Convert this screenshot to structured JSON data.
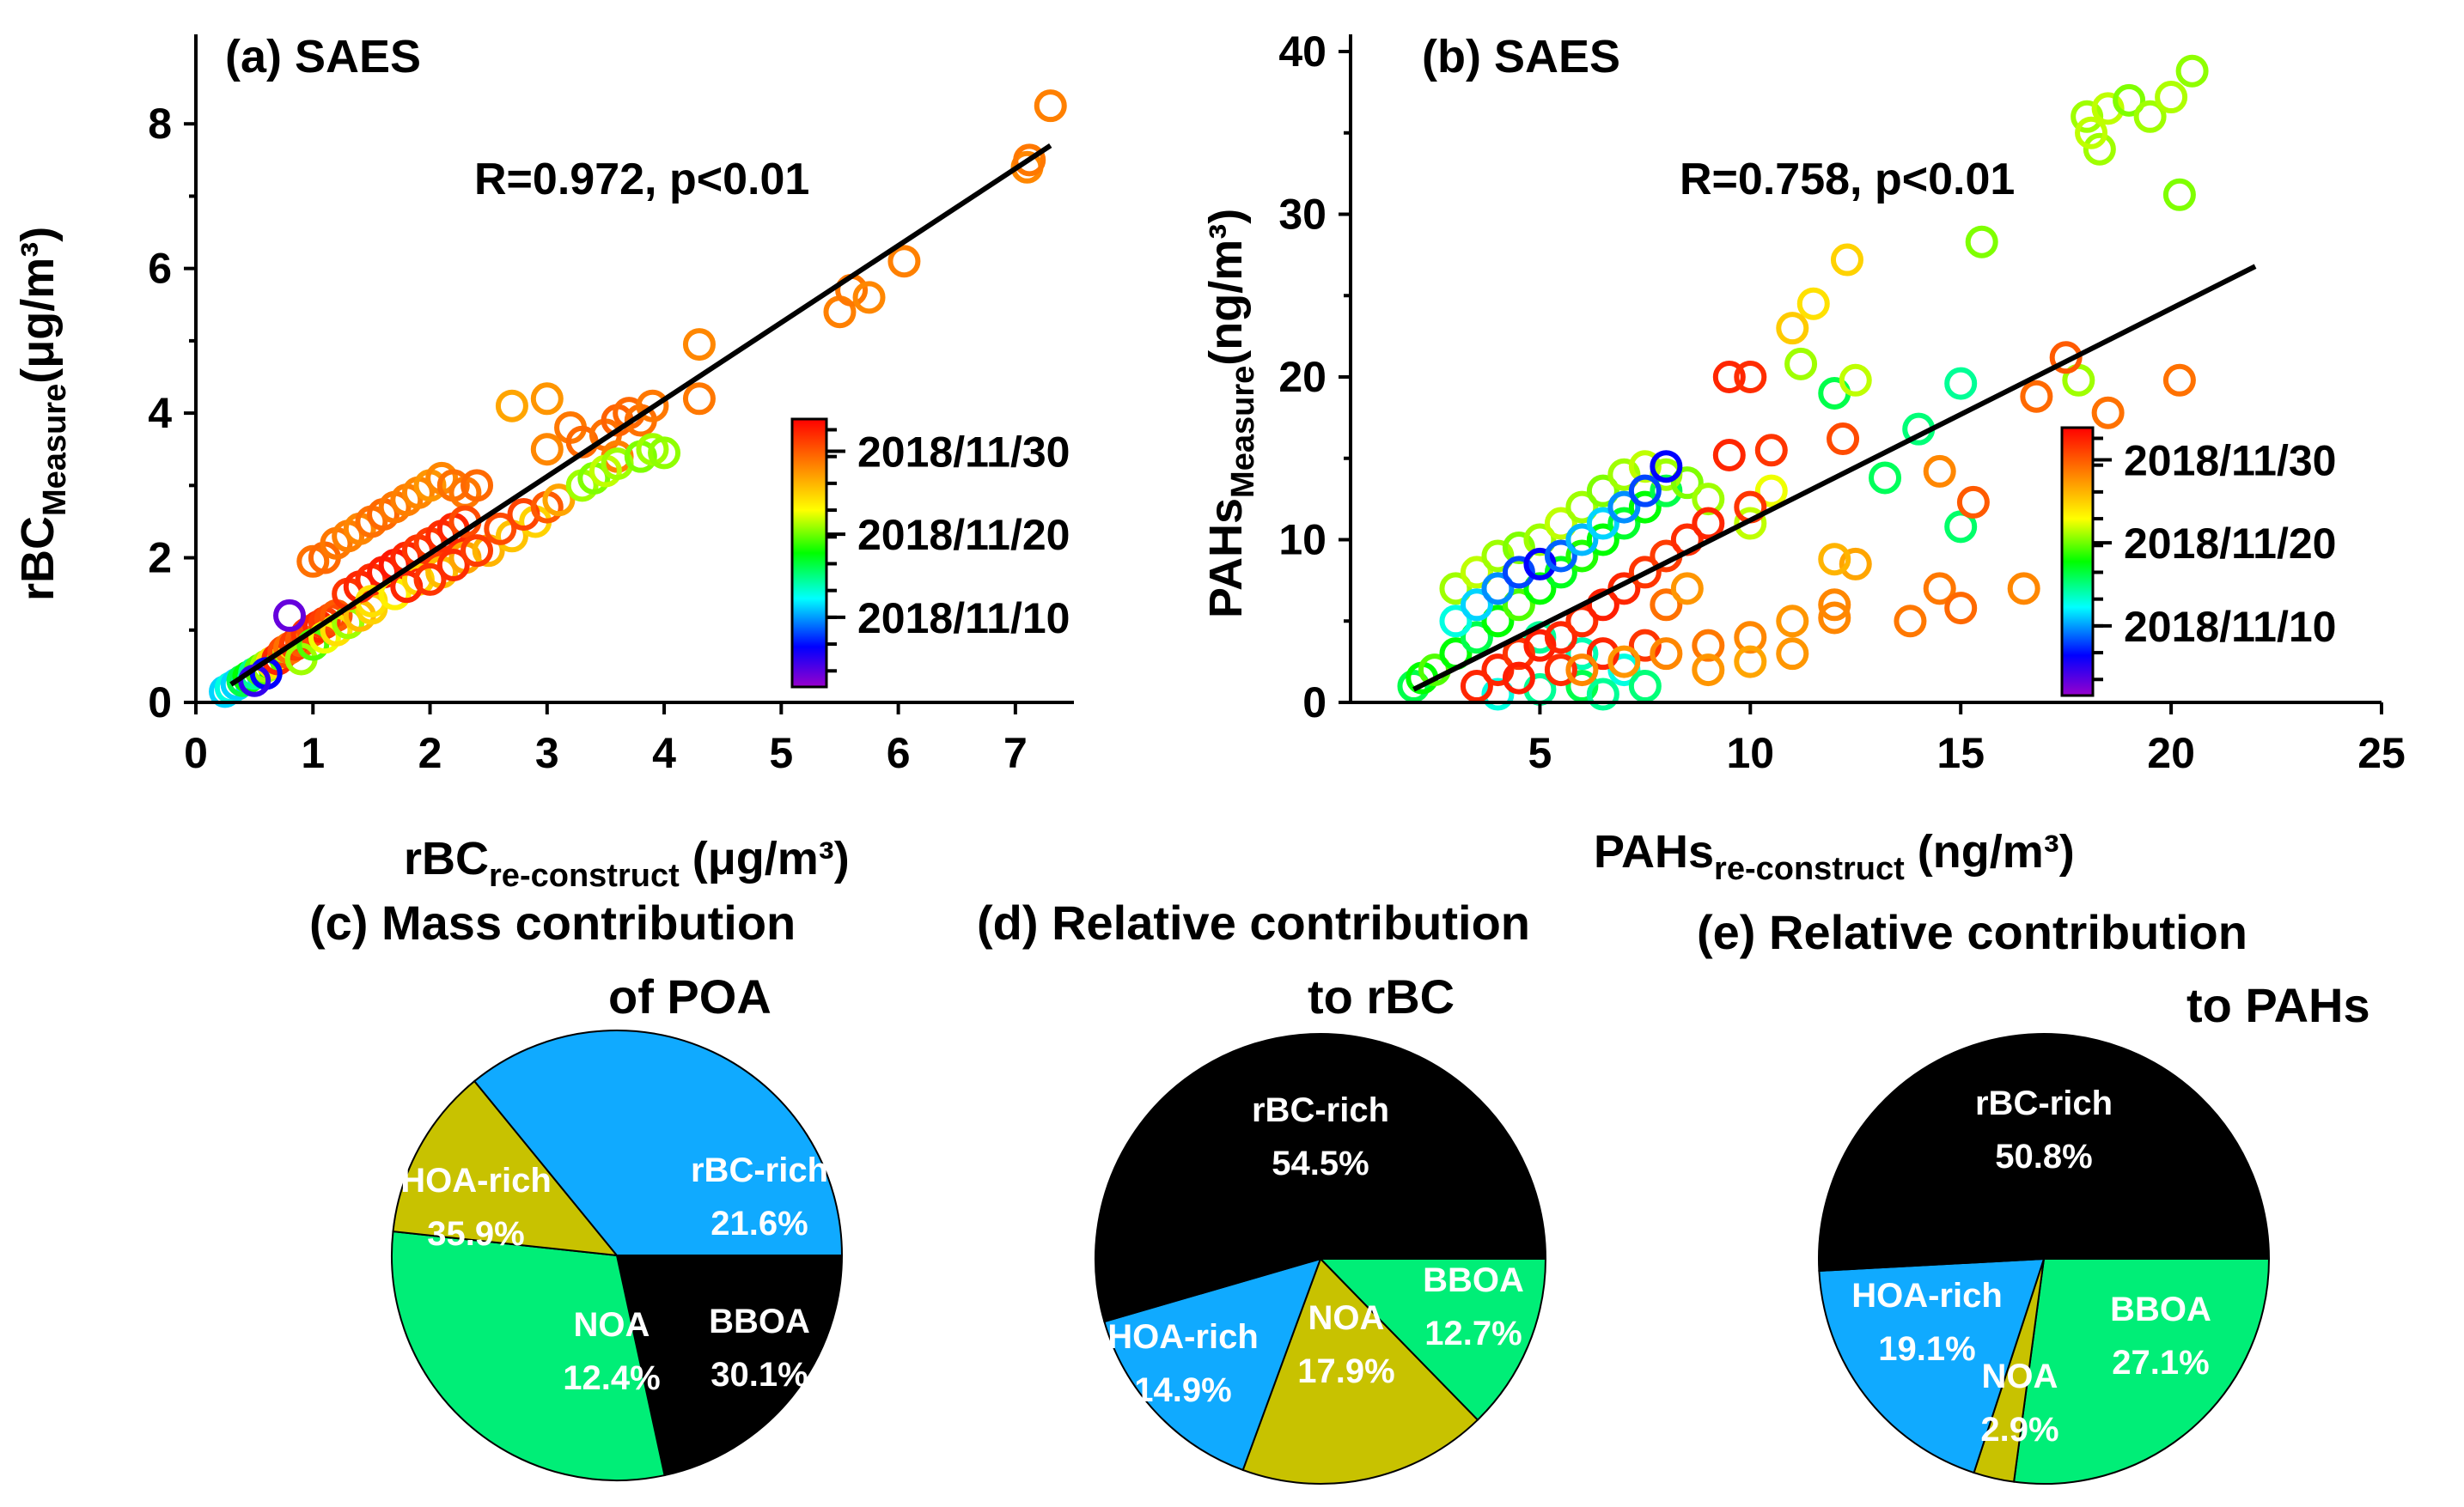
{
  "chart_data": [
    {
      "id": "a",
      "type": "scatter",
      "title": "(a) SAES",
      "xlabel": "rBC",
      "xlabel_sub": "re-construct",
      "xlabel_unit": " (μg/m³)",
      "ylabel": "rBC",
      "ylabel_sub": "Measure",
      "ylabel_unit": "(μg/m³)",
      "xlim": [
        0,
        7.5
      ],
      "ylim": [
        0,
        9
      ],
      "xticks": [
        0,
        1,
        2,
        3,
        4,
        5,
        6,
        7
      ],
      "yticks": [
        0,
        2,
        4,
        6,
        8
      ],
      "annotation": "R=0.972, p<0.01",
      "fit_line": {
        "x": [
          0.3,
          7.3
        ],
        "y": [
          0.25,
          7.7
        ]
      },
      "colorbar": {
        "min": 0,
        "max": 1,
        "labels": [
          "2018/11/30",
          "2018/11/20",
          "2018/11/10"
        ],
        "label_positions": [
          0.88,
          0.57,
          0.26
        ]
      },
      "points": [
        [
          0.25,
          0.15,
          0.3
        ],
        [
          0.3,
          0.2,
          0.35
        ],
        [
          0.35,
          0.25,
          0.3
        ],
        [
          0.4,
          0.3,
          0.45
        ],
        [
          0.45,
          0.35,
          0.5
        ],
        [
          0.5,
          0.4,
          0.4
        ],
        [
          0.55,
          0.45,
          0.55
        ],
        [
          0.6,
          0.5,
          0.6
        ],
        [
          0.65,
          0.55,
          0.7
        ],
        [
          0.7,
          0.6,
          0.95
        ],
        [
          0.75,
          0.7,
          0.9
        ],
        [
          0.8,
          0.75,
          0.85
        ],
        [
          0.85,
          0.8,
          0.92
        ],
        [
          0.9,
          0.85,
          0.88
        ],
        [
          0.95,
          0.95,
          0.93
        ],
        [
          1.0,
          1.0,
          0.9
        ],
        [
          1.05,
          1.05,
          0.95
        ],
        [
          1.1,
          1.1,
          0.92
        ],
        [
          1.15,
          1.15,
          0.9
        ],
        [
          1.2,
          1.2,
          0.88
        ],
        [
          0.8,
          1.2,
          0.05
        ],
        [
          0.6,
          0.4,
          0.15
        ],
        [
          0.5,
          0.3,
          0.1
        ],
        [
          0.9,
          0.6,
          0.6
        ],
        [
          1.0,
          0.8,
          0.55
        ],
        [
          1.1,
          0.9,
          0.65
        ],
        [
          1.2,
          1.0,
          0.7
        ],
        [
          1.3,
          1.1,
          0.6
        ],
        [
          1.4,
          1.2,
          0.75
        ],
        [
          1.5,
          1.3,
          0.72
        ],
        [
          1.0,
          1.95,
          0.85
        ],
        [
          1.1,
          2.0,
          0.86
        ],
        [
          1.2,
          2.2,
          0.84
        ],
        [
          1.3,
          2.3,
          0.83
        ],
        [
          1.4,
          2.4,
          0.82
        ],
        [
          1.5,
          2.5,
          0.85
        ],
        [
          1.6,
          2.6,
          0.86
        ],
        [
          1.7,
          2.7,
          0.84
        ],
        [
          1.8,
          2.8,
          0.83
        ],
        [
          1.9,
          2.9,
          0.82
        ],
        [
          2.0,
          3.0,
          0.8
        ],
        [
          2.1,
          3.1,
          0.82
        ],
        [
          2.2,
          3.0,
          0.85
        ],
        [
          2.3,
          2.9,
          0.84
        ],
        [
          2.4,
          3.0,
          0.86
        ],
        [
          1.3,
          1.5,
          0.93
        ],
        [
          1.4,
          1.6,
          0.95
        ],
        [
          1.5,
          1.7,
          0.94
        ],
        [
          1.6,
          1.8,
          0.96
        ],
        [
          1.7,
          1.9,
          0.97
        ],
        [
          1.8,
          2.0,
          0.95
        ],
        [
          1.9,
          2.1,
          0.93
        ],
        [
          2.0,
          2.2,
          0.92
        ],
        [
          2.1,
          2.3,
          0.94
        ],
        [
          2.2,
          2.4,
          0.95
        ],
        [
          2.3,
          2.5,
          0.9
        ],
        [
          1.5,
          1.4,
          0.7
        ],
        [
          1.7,
          1.5,
          0.68
        ],
        [
          1.9,
          1.7,
          0.72
        ],
        [
          2.1,
          1.8,
          0.75
        ],
        [
          2.3,
          2.0,
          0.78
        ],
        [
          2.5,
          2.1,
          0.76
        ],
        [
          2.7,
          2.3,
          0.74
        ],
        [
          2.9,
          2.5,
          0.72
        ],
        [
          1.8,
          1.6,
          0.95
        ],
        [
          2.0,
          1.7,
          0.93
        ],
        [
          2.2,
          1.9,
          0.94
        ],
        [
          2.4,
          2.1,
          0.92
        ],
        [
          2.6,
          2.4,
          0.9
        ],
        [
          2.8,
          2.6,
          0.91
        ],
        [
          3.0,
          2.7,
          0.88
        ],
        [
          2.7,
          4.1,
          0.78
        ],
        [
          3.0,
          4.2,
          0.8
        ],
        [
          3.0,
          3.5,
          0.82
        ],
        [
          3.2,
          3.8,
          0.84
        ],
        [
          3.3,
          3.6,
          0.86
        ],
        [
          3.5,
          3.7,
          0.85
        ],
        [
          3.6,
          3.9,
          0.87
        ],
        [
          3.7,
          4.0,
          0.86
        ],
        [
          3.8,
          3.9,
          0.85
        ],
        [
          3.9,
          4.1,
          0.84
        ],
        [
          3.6,
          3.4,
          0.83
        ],
        [
          3.1,
          2.8,
          0.78
        ],
        [
          3.3,
          3.0,
          0.6
        ],
        [
          3.4,
          3.1,
          0.58
        ],
        [
          3.5,
          3.2,
          0.62
        ],
        [
          3.6,
          3.3,
          0.6
        ],
        [
          3.8,
          3.4,
          0.58
        ],
        [
          3.9,
          3.5,
          0.6
        ],
        [
          4.0,
          3.45,
          0.59
        ],
        [
          4.3,
          4.95,
          0.82
        ],
        [
          4.3,
          4.2,
          0.84
        ],
        [
          5.5,
          5.4,
          0.83
        ],
        [
          5.6,
          5.7,
          0.84
        ],
        [
          5.75,
          5.6,
          0.82
        ],
        [
          6.05,
          6.1,
          0.83
        ],
        [
          7.1,
          7.4,
          0.82
        ],
        [
          7.12,
          7.5,
          0.84
        ],
        [
          7.3,
          8.25,
          0.83
        ]
      ]
    },
    {
      "id": "b",
      "type": "scatter",
      "title": "(b) SAES",
      "xlabel": "PAHs",
      "xlabel_sub": "re-construct",
      "xlabel_unit": " (ng/m³)",
      "ylabel": "PAHs",
      "ylabel_sub": "Measure",
      "ylabel_unit": "(ng/m³)",
      "xlim": [
        0.5,
        25
      ],
      "ylim": [
        0,
        40
      ],
      "xticks": [
        5,
        10,
        15,
        20,
        25
      ],
      "yticks": [
        0,
        10,
        20,
        30,
        40
      ],
      "annotation": "R=0.758, p<0.01",
      "fit_line": {
        "x": [
          2.0,
          22.0
        ],
        "y": [
          0.8,
          26.8
        ]
      },
      "colorbar": {
        "min": 0,
        "max": 1,
        "labels": [
          "2018/11/30",
          "2018/11/20",
          "2018/11/10"
        ],
        "label_positions": [
          0.88,
          0.57,
          0.26
        ]
      },
      "points": [
        [
          18,
          36,
          0.6
        ],
        [
          18.5,
          36.5,
          0.62
        ],
        [
          19,
          37,
          0.58
        ],
        [
          19.5,
          36,
          0.6
        ],
        [
          20,
          37.2,
          0.61
        ],
        [
          20.5,
          38.8,
          0.59
        ],
        [
          20.2,
          31.2,
          0.58
        ],
        [
          18.3,
          34,
          0.6
        ],
        [
          18.1,
          35,
          0.62
        ],
        [
          15.5,
          28.3,
          0.58
        ],
        [
          17.8,
          19.8,
          0.6
        ],
        [
          12.3,
          27.2,
          0.72
        ],
        [
          11.5,
          24.5,
          0.7
        ],
        [
          11,
          23,
          0.73
        ],
        [
          11.2,
          20.8,
          0.6
        ],
        [
          12.0,
          19,
          0.45
        ],
        [
          14.0,
          16.8,
          0.42
        ],
        [
          15.0,
          19.6,
          0.4
        ],
        [
          13.2,
          13.8,
          0.44
        ],
        [
          15,
          10.8,
          0.43
        ],
        [
          12.5,
          19.8,
          0.62
        ],
        [
          9.5,
          20,
          0.95
        ],
        [
          10,
          20,
          0.94
        ],
        [
          9.5,
          15.2,
          0.95
        ],
        [
          10.5,
          15.5,
          0.93
        ],
        [
          12.2,
          16.2,
          0.9
        ],
        [
          17.5,
          21.2,
          0.88
        ],
        [
          16.8,
          18.8,
          0.86
        ],
        [
          18.5,
          17.8,
          0.85
        ],
        [
          20.2,
          19.8,
          0.85
        ],
        [
          15.3,
          12.3,
          0.88
        ],
        [
          14.5,
          14.2,
          0.82
        ],
        [
          16.5,
          7,
          0.82
        ],
        [
          14.5,
          7,
          0.84
        ],
        [
          15,
          5.8,
          0.86
        ],
        [
          13.8,
          5,
          0.84
        ],
        [
          2,
          1,
          0.45
        ],
        [
          2.2,
          1.5,
          0.5
        ],
        [
          2.5,
          2,
          0.55
        ],
        [
          3,
          3,
          0.5
        ],
        [
          3.5,
          4,
          0.45
        ],
        [
          4,
          5,
          0.5
        ],
        [
          4.5,
          6,
          0.55
        ],
        [
          5,
          7,
          0.5
        ],
        [
          5.5,
          8,
          0.48
        ],
        [
          6,
          9,
          0.52
        ],
        [
          6.5,
          10,
          0.5
        ],
        [
          7,
          11,
          0.47
        ],
        [
          7.5,
          12,
          0.5
        ],
        [
          8,
          13,
          0.45
        ],
        [
          3,
          7,
          0.6
        ],
        [
          3.5,
          8,
          0.62
        ],
        [
          4,
          9,
          0.6
        ],
        [
          4.5,
          9.5,
          0.58
        ],
        [
          5,
          10,
          0.6
        ],
        [
          5.5,
          11,
          0.62
        ],
        [
          6,
          12,
          0.6
        ],
        [
          6.5,
          13,
          0.58
        ],
        [
          7,
          14,
          0.6
        ],
        [
          7.5,
          14.5,
          0.62
        ],
        [
          8,
          14,
          0.6
        ],
        [
          8.5,
          13.5,
          0.58
        ],
        [
          9,
          12.5,
          0.6
        ],
        [
          10,
          11,
          0.62
        ],
        [
          10.5,
          13,
          0.65
        ],
        [
          3,
          5,
          0.35
        ],
        [
          3.5,
          6,
          0.3
        ],
        [
          4,
          7,
          0.25
        ],
        [
          4.5,
          8,
          0.2
        ],
        [
          5,
          8.5,
          0.15
        ],
        [
          5.5,
          9,
          0.22
        ],
        [
          6,
          10,
          0.28
        ],
        [
          6.5,
          11,
          0.3
        ],
        [
          7,
          12,
          0.25
        ],
        [
          7.5,
          13,
          0.2
        ],
        [
          8,
          14.5,
          0.15
        ],
        [
          5,
          4,
          0.4
        ],
        [
          6,
          3,
          0.38
        ],
        [
          7,
          2,
          0.35
        ],
        [
          6,
          1,
          0.45
        ],
        [
          5,
          0.8,
          0.4
        ],
        [
          7.5,
          1,
          0.42
        ],
        [
          4,
          0.5,
          0.35
        ],
        [
          6.5,
          0.5,
          0.4
        ],
        [
          4,
          2,
          0.95
        ],
        [
          4.5,
          3,
          0.93
        ],
        [
          5,
          3.5,
          0.96
        ],
        [
          5.5,
          4,
          0.95
        ],
        [
          6,
          5,
          0.94
        ],
        [
          6.5,
          6,
          0.96
        ],
        [
          7,
          7,
          0.95
        ],
        [
          7.5,
          8,
          0.93
        ],
        [
          8,
          9,
          0.92
        ],
        [
          8.5,
          10,
          0.94
        ],
        [
          9,
          11,
          0.95
        ],
        [
          10,
          12,
          0.93
        ],
        [
          3.5,
          1,
          0.95
        ],
        [
          4.5,
          1.5,
          0.96
        ],
        [
          5.5,
          2,
          0.94
        ],
        [
          6.5,
          3,
          0.95
        ],
        [
          7.5,
          3.5,
          0.93
        ],
        [
          6,
          2,
          0.82
        ],
        [
          7,
          2.5,
          0.8
        ],
        [
          8,
          3,
          0.82
        ],
        [
          9,
          3.5,
          0.84
        ],
        [
          10,
          4,
          0.82
        ],
        [
          11,
          5,
          0.8
        ],
        [
          12,
          6,
          0.82
        ],
        [
          9,
          2,
          0.8
        ],
        [
          10,
          2.5,
          0.78
        ],
        [
          11,
          3,
          0.8
        ],
        [
          12,
          5.2,
          0.82
        ],
        [
          12.5,
          8.5,
          0.78
        ],
        [
          12,
          8.8,
          0.76
        ],
        [
          8,
          6,
          0.85
        ],
        [
          8.5,
          7,
          0.8
        ]
      ]
    },
    {
      "id": "c",
      "type": "pie",
      "title_line1": "(c) Mass contribution",
      "title_line2": "of POA",
      "slices": [
        {
          "label": "rBC-rich",
          "value": 21.6,
          "pct": "21.6%",
          "color": "#000000"
        },
        {
          "label": "BBOA",
          "value": 30.1,
          "pct": "30.1%",
          "color": "#00ee77"
        },
        {
          "label": "NOA",
          "value": 12.4,
          "pct": "12.4%",
          "color": "#c8c200"
        },
        {
          "label": "HOA-rich",
          "value": 35.9,
          "pct": "35.9%",
          "color": "#10aaff"
        }
      ]
    },
    {
      "id": "d",
      "type": "pie",
      "title_line1": "(d) Relative contribution",
      "title_line2": "to rBC",
      "slices": [
        {
          "label": "BBOA",
          "value": 12.7,
          "pct": "12.7%",
          "color": "#00ee77"
        },
        {
          "label": "NOA",
          "value": 17.9,
          "pct": "17.9%",
          "color": "#c8c200"
        },
        {
          "label": "HOA-rich",
          "value": 14.9,
          "pct": "14.9%",
          "color": "#10aaff"
        },
        {
          "label": "rBC-rich",
          "value": 54.5,
          "pct": "54.5%",
          "color": "#000000"
        }
      ]
    },
    {
      "id": "e",
      "type": "pie",
      "title_line1": "(e) Relative contribution",
      "title_line2": "to PAHs",
      "slices": [
        {
          "label": "BBOA",
          "value": 27.1,
          "pct": "27.1%",
          "color": "#00ee77"
        },
        {
          "label": "NOA",
          "value": 2.9,
          "pct": "2.9%",
          "color": "#c8c200"
        },
        {
          "label": "HOA-rich",
          "value": 19.1,
          "pct": "19.1%",
          "color": "#10aaff"
        },
        {
          "label": "rBC-rich",
          "value": 50.8,
          "pct": "50.8%",
          "color": "#000000"
        }
      ]
    }
  ]
}
